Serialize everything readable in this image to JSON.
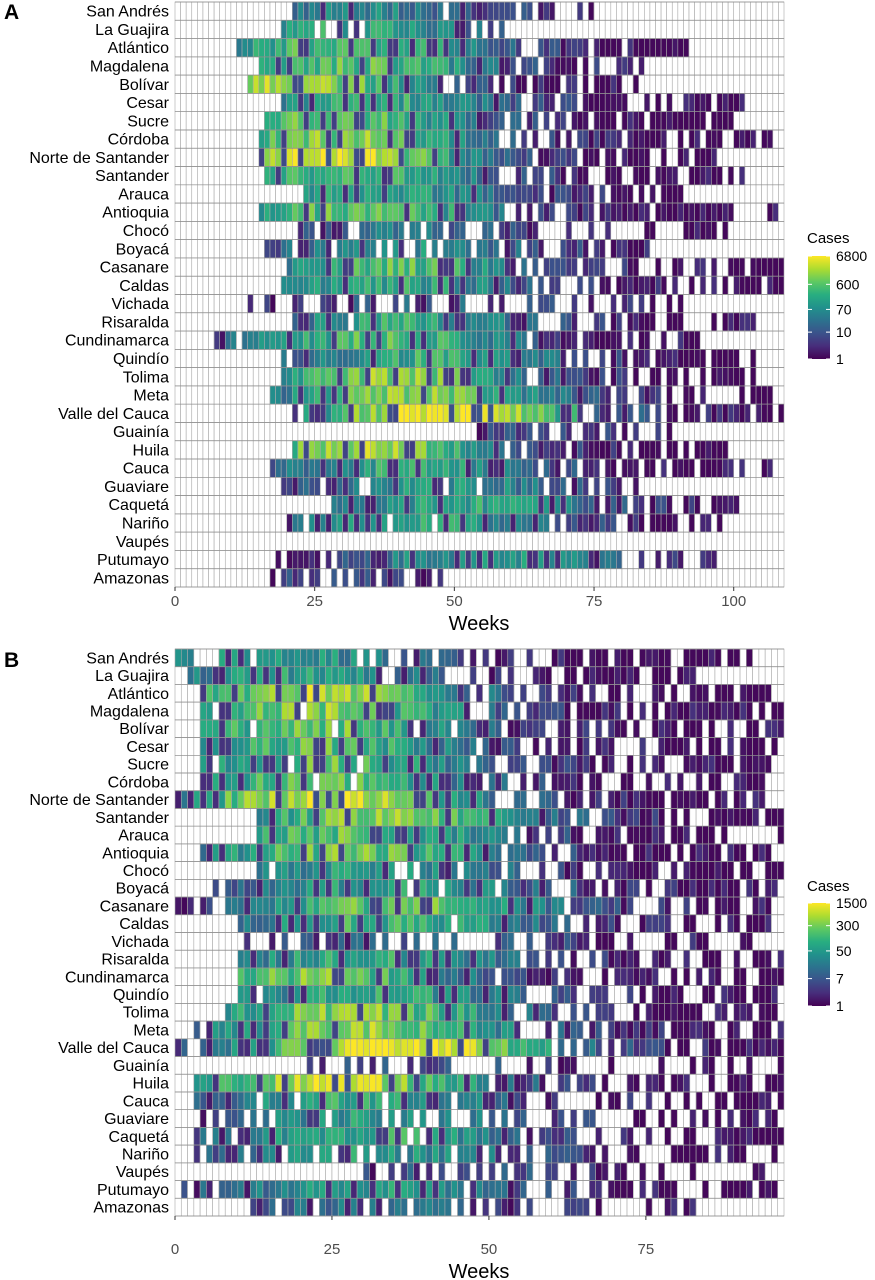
{
  "panels": [
    {
      "letter": "A"
    },
    {
      "letter": "B"
    }
  ],
  "chart_data": [
    {
      "type": "heatmap",
      "panel": "A",
      "xlabel": "Weeks",
      "xlim": [
        0,
        109
      ],
      "xticks": [
        0,
        25,
        50,
        75,
        100
      ],
      "legend_title": "Cases",
      "legend_position": "right",
      "color_scale": "viridis-log",
      "color_max": 6800,
      "legend_ticks": [
        1,
        10,
        70,
        600,
        6800
      ],
      "rows": [
        {
          "name": "San Andrés",
          "onset": 21,
          "end": 74,
          "peak": 0.45,
          "peak_week": 33,
          "density": 0.78
        },
        {
          "name": "La Guajira",
          "onset": 19,
          "end": 58,
          "peak": 0.62,
          "peak_week": 30,
          "density": 0.7
        },
        {
          "name": "Atlántico",
          "onset": 11,
          "end": 91,
          "peak": 0.72,
          "peak_week": 30,
          "density": 0.95
        },
        {
          "name": "Magdalena",
          "onset": 15,
          "end": 86,
          "peak": 0.72,
          "peak_week": 32,
          "density": 0.85
        },
        {
          "name": "Bolívar",
          "onset": 13,
          "end": 82,
          "peak": 0.92,
          "peak_week": 18,
          "density": 0.85
        },
        {
          "name": "Cesar",
          "onset": 19,
          "end": 101,
          "peak": 0.62,
          "peak_week": 35,
          "density": 0.85
        },
        {
          "name": "Sucre",
          "onset": 16,
          "end": 99,
          "peak": 0.78,
          "peak_week": 28,
          "density": 0.9
        },
        {
          "name": "Córdoba",
          "onset": 15,
          "end": 106,
          "peak": 0.8,
          "peak_week": 30,
          "density": 0.93
        },
        {
          "name": "Norte de Santander",
          "onset": 15,
          "end": 96,
          "peak": 0.95,
          "peak_week": 27,
          "density": 0.85
        },
        {
          "name": "Santander",
          "onset": 16,
          "end": 101,
          "peak": 0.7,
          "peak_week": 32,
          "density": 0.9
        },
        {
          "name": "Arauca",
          "onset": 23,
          "end": 90,
          "peak": 0.6,
          "peak_week": 35,
          "density": 0.85
        },
        {
          "name": "Antioquia",
          "onset": 15,
          "end": 107,
          "peak": 0.75,
          "peak_week": 33,
          "density": 0.9
        },
        {
          "name": "Chocó",
          "onset": 22,
          "end": 98,
          "peak": 0.4,
          "peak_week": 38,
          "density": 0.55
        },
        {
          "name": "Boyacá",
          "onset": 16,
          "end": 85,
          "peak": 0.5,
          "peak_week": 40,
          "density": 0.7
        },
        {
          "name": "Casanare",
          "onset": 20,
          "end": 109,
          "peak": 0.72,
          "peak_week": 38,
          "density": 0.8
        },
        {
          "name": "Caldas",
          "onset": 19,
          "end": 109,
          "peak": 0.6,
          "peak_week": 38,
          "density": 0.85
        },
        {
          "name": "Vichada",
          "onset": 11,
          "end": 91,
          "peak": 0.3,
          "peak_week": 50,
          "density": 0.45
        },
        {
          "name": "Risaralda",
          "onset": 21,
          "end": 103,
          "peak": 0.6,
          "peak_week": 40,
          "density": 0.8
        },
        {
          "name": "Cundinamarca",
          "onset": 7,
          "end": 93,
          "peak": 0.7,
          "peak_week": 36,
          "density": 0.88
        },
        {
          "name": "Quindío",
          "onset": 19,
          "end": 103,
          "peak": 0.62,
          "peak_week": 45,
          "density": 0.85
        },
        {
          "name": "Tolima",
          "onset": 19,
          "end": 103,
          "peak": 0.8,
          "peak_week": 38,
          "density": 0.88
        },
        {
          "name": "Meta",
          "onset": 16,
          "end": 106,
          "peak": 0.8,
          "peak_week": 42,
          "density": 0.9
        },
        {
          "name": "Valle del Cauca",
          "onset": 18,
          "end": 109,
          "peak": 1.0,
          "peak_week": 48,
          "density": 0.95
        },
        {
          "name": "Guainía",
          "onset": 53,
          "end": 96,
          "peak": 0.2,
          "peak_week": 60,
          "density": 0.25
        },
        {
          "name": "Huila",
          "onset": 21,
          "end": 99,
          "peak": 0.85,
          "peak_week": 33,
          "density": 0.9
        },
        {
          "name": "Cauca",
          "onset": 17,
          "end": 106,
          "peak": 0.6,
          "peak_week": 40,
          "density": 0.85
        },
        {
          "name": "Guaviare",
          "onset": 19,
          "end": 84,
          "peak": 0.55,
          "peak_week": 45,
          "density": 0.75
        },
        {
          "name": "Caquetá",
          "onset": 28,
          "end": 100,
          "peak": 0.6,
          "peak_week": 50,
          "density": 0.85
        },
        {
          "name": "Nariño",
          "onset": 20,
          "end": 97,
          "peak": 0.62,
          "peak_week": 42,
          "density": 0.75
        },
        {
          "name": "Vaupés",
          "onset": 200,
          "end": 200,
          "peak": 0.0,
          "peak_week": 0,
          "density": 0.0
        },
        {
          "name": "Putumayo",
          "onset": 18,
          "end": 97,
          "peak": 0.55,
          "peak_week": 55,
          "density": 0.85
        },
        {
          "name": "Amazonas",
          "onset": 15,
          "end": 47,
          "peak": 0.25,
          "peak_week": 30,
          "density": 0.35
        }
      ]
    },
    {
      "type": "heatmap",
      "panel": "B",
      "xlabel": "Weeks",
      "xlim": [
        0,
        97
      ],
      "xticks": [
        0,
        25,
        50,
        75
      ],
      "legend_title": "Cases",
      "legend_position": "right",
      "color_scale": "viridis-log",
      "color_max": 1500,
      "legend_ticks": [
        1,
        7,
        50,
        300,
        1500
      ],
      "rows": [
        {
          "name": "San Andrés",
          "onset": 0,
          "end": 91,
          "peak": 0.55,
          "peak_week": 15,
          "density": 0.7
        },
        {
          "name": "La Guajira",
          "onset": 2,
          "end": 84,
          "peak": 0.55,
          "peak_week": 18,
          "density": 0.75
        },
        {
          "name": "Atlántico",
          "onset": 4,
          "end": 97,
          "peak": 0.85,
          "peak_week": 22,
          "density": 0.85
        },
        {
          "name": "Magdalena",
          "onset": 4,
          "end": 97,
          "peak": 0.8,
          "peak_week": 22,
          "density": 0.82
        },
        {
          "name": "Bolívar",
          "onset": 4,
          "end": 97,
          "peak": 0.75,
          "peak_week": 22,
          "density": 0.82
        },
        {
          "name": "Cesar",
          "onset": 4,
          "end": 97,
          "peak": 0.7,
          "peak_week": 22,
          "density": 0.8
        },
        {
          "name": "Sucre",
          "onset": 4,
          "end": 97,
          "peak": 0.72,
          "peak_week": 22,
          "density": 0.8
        },
        {
          "name": "Córdoba",
          "onset": 4,
          "end": 97,
          "peak": 0.72,
          "peak_week": 23,
          "density": 0.8
        },
        {
          "name": "Norte de Santander",
          "onset": 0,
          "end": 97,
          "peak": 0.92,
          "peak_week": 24,
          "density": 0.85
        },
        {
          "name": "Santander",
          "onset": 13,
          "end": 97,
          "peak": 0.8,
          "peak_week": 33,
          "density": 0.9
        },
        {
          "name": "Arauca",
          "onset": 13,
          "end": 97,
          "peak": 0.72,
          "peak_week": 28,
          "density": 0.82
        },
        {
          "name": "Antioquia",
          "onset": 4,
          "end": 97,
          "peak": 0.75,
          "peak_week": 27,
          "density": 0.85
        },
        {
          "name": "Chocó",
          "onset": 13,
          "end": 97,
          "peak": 0.55,
          "peak_week": 30,
          "density": 0.65
        },
        {
          "name": "Boyacá",
          "onset": 5,
          "end": 97,
          "peak": 0.6,
          "peak_week": 35,
          "density": 0.8
        },
        {
          "name": "Casanare",
          "onset": 0,
          "end": 97,
          "peak": 0.75,
          "peak_week": 35,
          "density": 0.8
        },
        {
          "name": "Caldas",
          "onset": 10,
          "end": 97,
          "peak": 0.65,
          "peak_week": 33,
          "density": 0.8
        },
        {
          "name": "Vichada",
          "onset": 10,
          "end": 93,
          "peak": 0.3,
          "peak_week": 40,
          "density": 0.45
        },
        {
          "name": "Risaralda",
          "onset": 10,
          "end": 97,
          "peak": 0.62,
          "peak_week": 30,
          "density": 0.85
        },
        {
          "name": "Cundinamarca",
          "onset": 10,
          "end": 97,
          "peak": 0.75,
          "peak_week": 22,
          "density": 0.88
        },
        {
          "name": "Quindío",
          "onset": 10,
          "end": 97,
          "peak": 0.62,
          "peak_week": 30,
          "density": 0.82
        },
        {
          "name": "Tolima",
          "onset": 8,
          "end": 97,
          "peak": 0.8,
          "peak_week": 28,
          "density": 0.88
        },
        {
          "name": "Meta",
          "onset": 3,
          "end": 97,
          "peak": 0.82,
          "peak_week": 30,
          "density": 0.88
        },
        {
          "name": "Valle del Cauca",
          "onset": 0,
          "end": 97,
          "peak": 1.0,
          "peak_week": 35,
          "density": 0.97
        },
        {
          "name": "Guainía",
          "onset": 21,
          "end": 96,
          "peak": 0.25,
          "peak_week": 35,
          "density": 0.25
        },
        {
          "name": "Huila",
          "onset": 3,
          "end": 97,
          "peak": 0.9,
          "peak_week": 25,
          "density": 0.85
        },
        {
          "name": "Cauca",
          "onset": 3,
          "end": 97,
          "peak": 0.62,
          "peak_week": 28,
          "density": 0.8
        },
        {
          "name": "Guaviare",
          "onset": 2,
          "end": 97,
          "peak": 0.55,
          "peak_week": 30,
          "density": 0.55
        },
        {
          "name": "Caquetá",
          "onset": 3,
          "end": 97,
          "peak": 0.62,
          "peak_week": 30,
          "density": 0.75
        },
        {
          "name": "Nariño",
          "onset": 3,
          "end": 97,
          "peak": 0.55,
          "peak_week": 30,
          "density": 0.65
        },
        {
          "name": "Vaupés",
          "onset": 30,
          "end": 95,
          "peak": 0.25,
          "peak_week": 45,
          "density": 0.3
        },
        {
          "name": "Putumayo",
          "onset": 0,
          "end": 97,
          "peak": 0.55,
          "peak_week": 30,
          "density": 0.82
        },
        {
          "name": "Amazonas",
          "onset": 12,
          "end": 85,
          "peak": 0.4,
          "peak_week": 30,
          "density": 0.6
        }
      ]
    }
  ]
}
